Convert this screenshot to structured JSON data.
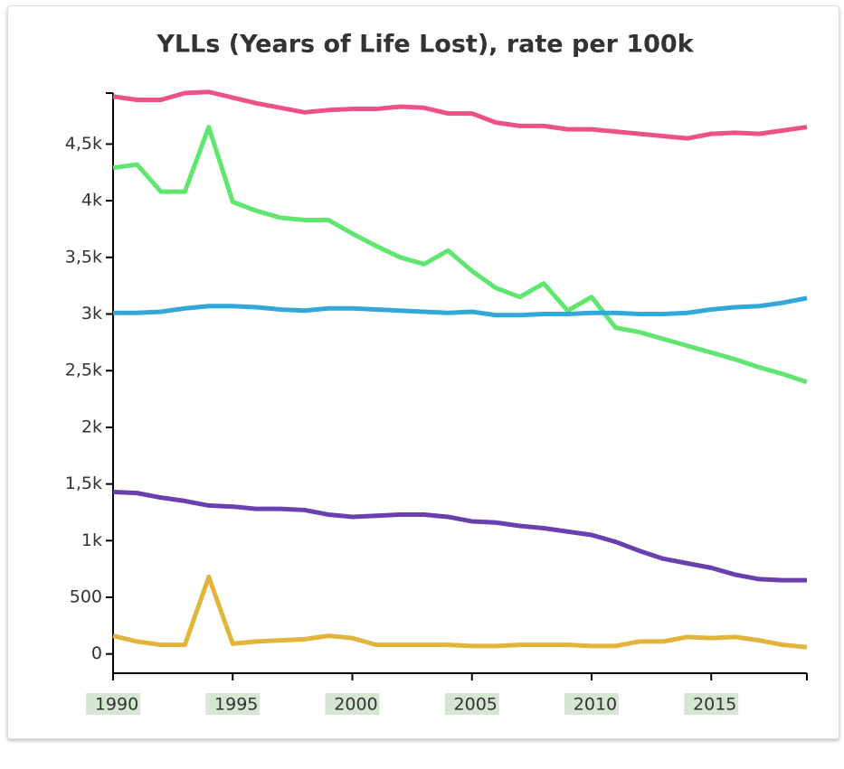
{
  "chart_data": {
    "type": "line",
    "title": "YLLs (Years of Life Lost), rate per 100k",
    "x": [
      1990,
      1991,
      1992,
      1993,
      1994,
      1995,
      1996,
      1997,
      1998,
      1999,
      2000,
      2001,
      2002,
      2003,
      2004,
      2005,
      2006,
      2007,
      2008,
      2009,
      2010,
      2011,
      2012,
      2013,
      2014,
      2015,
      2016,
      2017,
      2018,
      2019
    ],
    "series": [
      {
        "color": "#ec5384",
        "values": [
          4920,
          4890,
          4890,
          4950,
          4960,
          4910,
          4860,
          4820,
          4780,
          4800,
          4810,
          4810,
          4830,
          4820,
          4770,
          4770,
          4690,
          4660,
          4660,
          4630,
          4630,
          4610,
          4590,
          4570,
          4550,
          4590,
          4600,
          4590,
          4620,
          4650
        ]
      },
      {
        "color": "#5ee66e",
        "values": [
          4290,
          4320,
          4080,
          4080,
          4650,
          3990,
          3910,
          3850,
          3830,
          3830,
          3710,
          3600,
          3500,
          3440,
          3560,
          3380,
          3230,
          3150,
          3270,
          3030,
          3150,
          2880,
          2840,
          2780,
          2720,
          2660,
          2600,
          2530,
          2470,
          2400
        ]
      },
      {
        "color": "#34a7d9",
        "values": [
          3010,
          3010,
          3020,
          3050,
          3070,
          3070,
          3060,
          3040,
          3030,
          3050,
          3050,
          3040,
          3030,
          3020,
          3010,
          3020,
          2990,
          2990,
          3000,
          3000,
          3010,
          3010,
          3000,
          3000,
          3010,
          3040,
          3060,
          3070,
          3100,
          3140
        ]
      },
      {
        "color": "#6a3fb0",
        "values": [
          1430,
          1420,
          1380,
          1350,
          1310,
          1300,
          1280,
          1280,
          1270,
          1230,
          1210,
          1220,
          1230,
          1230,
          1210,
          1170,
          1160,
          1130,
          1110,
          1080,
          1050,
          990,
          910,
          840,
          800,
          760,
          700,
          660,
          650,
          650
        ]
      },
      {
        "color": "#e2b43a",
        "values": [
          160,
          110,
          80,
          80,
          680,
          90,
          110,
          120,
          130,
          160,
          140,
          80,
          80,
          80,
          80,
          70,
          70,
          80,
          80,
          80,
          70,
          70,
          110,
          110,
          150,
          140,
          150,
          120,
          80,
          60
        ]
      }
    ],
    "xlim": [
      1990,
      2019
    ],
    "xticks": [
      1990,
      1995,
      2000,
      2005,
      2010,
      2015
    ],
    "ylim": [
      -170,
      4950
    ],
    "yticks": [
      0,
      500,
      {
        "value": 1000,
        "label": "1k"
      },
      {
        "value": 1500,
        "label": "1,5k"
      },
      {
        "value": 2000,
        "label": "2k"
      },
      {
        "value": 2500,
        "label": "2,5k"
      },
      {
        "value": 3000,
        "label": "3k"
      },
      {
        "value": 3500,
        "label": "3,5k"
      },
      {
        "value": 4000,
        "label": "4k"
      },
      {
        "value": 4500,
        "label": "4,5k"
      }
    ]
  }
}
